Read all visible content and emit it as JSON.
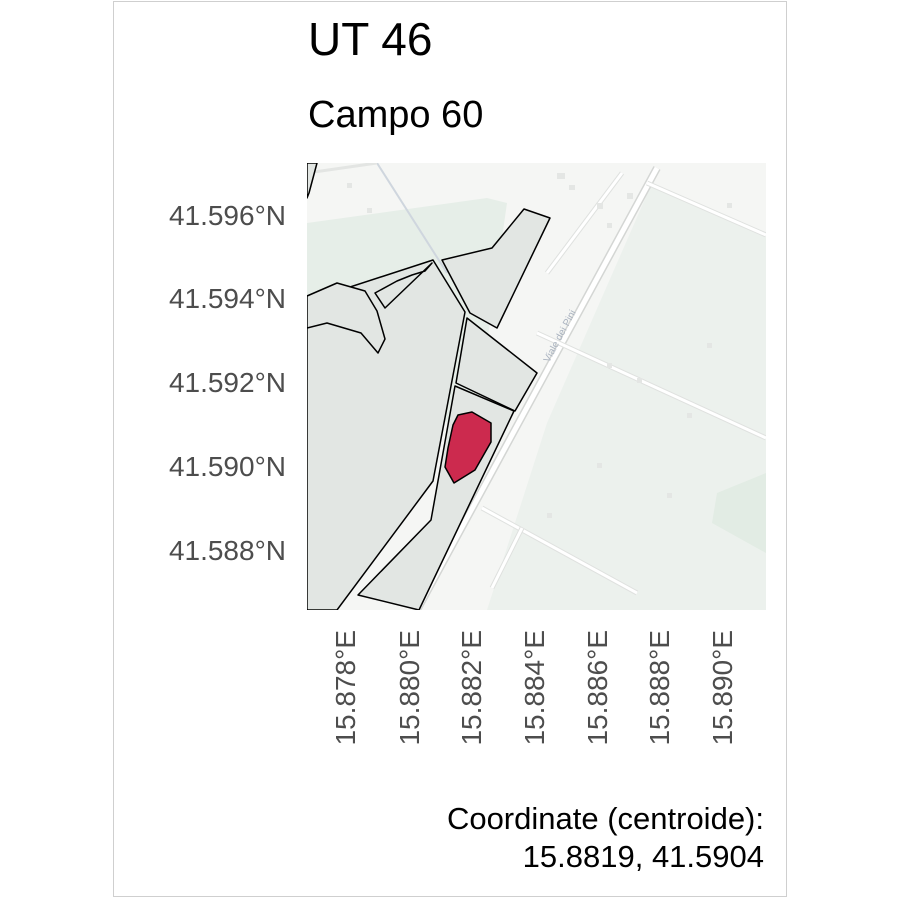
{
  "title": "UT 46",
  "subtitle": "Campo 60",
  "map": {
    "road_label": "Viale dei Pini",
    "highlight_color": "#cc2a4e",
    "parcel_fill": "#e2e6e3",
    "basemap_bg": "#f4f5f3",
    "green_area": "#e9f0ea"
  },
  "axes": {
    "y_ticks": [
      "41.596°N",
      "41.594°N",
      "41.592°N",
      "41.590°N",
      "41.588°N"
    ],
    "x_ticks": [
      "15.878°E",
      "15.880°E",
      "15.882°E",
      "15.884°E",
      "15.886°E",
      "15.888°E",
      "15.890°E"
    ]
  },
  "caption": {
    "line1": "Coordinate (centroide):",
    "line2": "15.8819, 41.5904"
  }
}
